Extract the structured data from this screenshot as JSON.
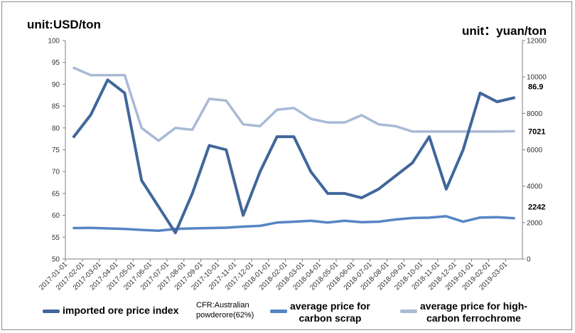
{
  "units": {
    "left": "unit:USD/ton",
    "right": "unit：yuan/ton"
  },
  "colors": {
    "ore": "#41679a",
    "scrap": "#5585c5",
    "ferro": "#a9bad6",
    "axis": "#7f7f7f"
  },
  "chart_data": {
    "type": "line",
    "x_categories": [
      "2017-01-01",
      "2017-02-01",
      "2017-03-01",
      "2017-04-01",
      "2017-05-01",
      "2017-06-01",
      "2017-07-01",
      "2017-08-01",
      "2017-09-01",
      "2017-10-01",
      "2017-11-01",
      "2017-12-01",
      "2018-01-01",
      "2018-02-01",
      "2018-03-01",
      "2018-04-01",
      "2018-05-01",
      "2018-06-01",
      "2018-07-01",
      "2018-08-01",
      "2018-09-01",
      "2018-10-01",
      "2018-11-01",
      "2018-12-01",
      "2019-01-01",
      "2019-02-01",
      "2019-03-01"
    ],
    "y_left": {
      "min": 50,
      "max": 100,
      "step": 5,
      "ticks": [
        "100",
        "95",
        "90",
        "85",
        "80",
        "75",
        "70",
        "65",
        "60",
        "55",
        "50"
      ]
    },
    "y_right": {
      "min": 0,
      "max": 12000,
      "step": 2000,
      "ticks": [
        "12000",
        "10000",
        "8000",
        "6000",
        "4000",
        "2000",
        "0"
      ]
    },
    "series": [
      {
        "name": "imported ore price index",
        "axis": "left",
        "end_label": "86.9",
        "values": [
          78,
          83,
          91,
          88,
          68,
          62,
          56,
          65,
          76,
          75,
          60,
          70,
          78,
          78,
          70,
          65,
          65,
          64,
          66,
          69,
          72,
          78,
          66,
          75,
          88,
          86,
          86.9
        ]
      },
      {
        "name": "average price for carbon scrap",
        "axis": "right",
        "end_label": "2242",
        "values": [
          1700,
          1710,
          1680,
          1650,
          1600,
          1550,
          1650,
          1680,
          1700,
          1720,
          1780,
          1820,
          2000,
          2050,
          2100,
          2000,
          2100,
          2020,
          2050,
          2170,
          2250,
          2270,
          2350,
          2050,
          2280,
          2300,
          2242
        ]
      },
      {
        "name": "average price for high-carbon ferrochrome",
        "axis": "right",
        "end_label": "7021",
        "values": [
          10500,
          10100,
          10100,
          10100,
          7200,
          6500,
          7200,
          7100,
          8800,
          8700,
          7400,
          7300,
          8200,
          8300,
          7700,
          7500,
          7500,
          7900,
          7400,
          7300,
          7000,
          7000,
          7000,
          7000,
          7000,
          7000,
          7021
        ]
      }
    ]
  },
  "legend": {
    "ore": "imported ore price index",
    "ore_sub1": "CFR:Australian",
    "ore_sub2": "powderore(62%)",
    "scrap1": "average price for",
    "scrap2": "carbon scrap",
    "ferro1": "average price for high-",
    "ferro2": "carbon ferrochrome"
  }
}
